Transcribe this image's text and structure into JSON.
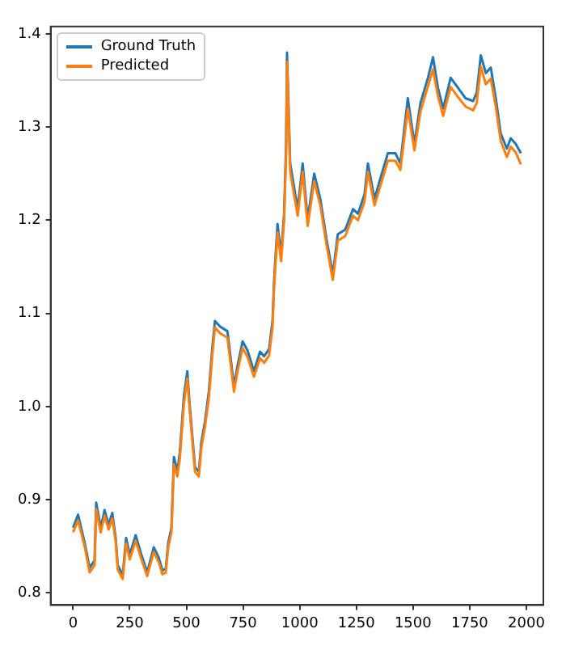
{
  "chart_data": {
    "type": "line",
    "legend": "top left",
    "grid": false,
    "marker": "none",
    "line_style": "solid",
    "xlim": [
      -99,
      2075
    ],
    "ylim": [
      0.787,
      1.408
    ],
    "xticks": [
      0,
      250,
      500,
      750,
      1000,
      1250,
      1500,
      1750,
      2000
    ],
    "yticks": [
      {
        "value": 0.8,
        "label": "0.8"
      },
      {
        "value": 0.9,
        "label": "0.9"
      },
      {
        "value": 1.0,
        "label": "1.0"
      },
      {
        "value": 1.1,
        "label": "1.1"
      },
      {
        "value": 1.2,
        "label": "1.2"
      },
      {
        "value": 1.3,
        "label": "1.3"
      },
      {
        "value": 1.4,
        "label": "1.4"
      }
    ],
    "x": [
      0,
      22,
      51,
      73,
      95,
      102,
      122,
      139,
      157,
      173,
      188,
      197,
      219,
      234,
      250,
      276,
      299,
      327,
      356,
      378,
      394,
      409,
      420,
      434,
      445,
      460,
      471,
      489,
      504,
      515,
      538,
      555,
      566,
      582,
      599,
      615,
      626,
      648,
      681,
      710,
      725,
      748,
      770,
      798,
      825,
      843,
      865,
      880,
      887,
      902,
      918,
      931,
      940,
      944,
      958,
      991,
      1013,
      1035,
      1064,
      1091,
      1118,
      1146,
      1168,
      1201,
      1235,
      1257,
      1286,
      1301,
      1330,
      1356,
      1389,
      1422,
      1444,
      1477,
      1506,
      1533,
      1566,
      1588,
      1610,
      1633,
      1666,
      1699,
      1732,
      1765,
      1781,
      1799,
      1821,
      1843,
      1865,
      1887,
      1914,
      1931,
      1953,
      1976
    ],
    "series": [
      {
        "name": "Ground Truth",
        "color": "#1f77b4",
        "values": [
          0.87,
          0.884,
          0.854,
          0.827,
          0.835,
          0.897,
          0.87,
          0.889,
          0.873,
          0.886,
          0.859,
          0.83,
          0.819,
          0.859,
          0.841,
          0.862,
          0.843,
          0.822,
          0.849,
          0.838,
          0.824,
          0.826,
          0.854,
          0.87,
          0.946,
          0.93,
          0.951,
          1.011,
          1.038,
          1.0,
          0.935,
          0.93,
          0.962,
          0.984,
          1.016,
          1.065,
          1.092,
          1.086,
          1.081,
          1.022,
          1.043,
          1.07,
          1.06,
          1.038,
          1.059,
          1.054,
          1.062,
          1.092,
          1.136,
          1.196,
          1.163,
          1.207,
          1.282,
          1.38,
          1.261,
          1.212,
          1.261,
          1.201,
          1.25,
          1.223,
          1.18,
          1.142,
          1.185,
          1.19,
          1.212,
          1.207,
          1.228,
          1.261,
          1.223,
          1.245,
          1.272,
          1.272,
          1.261,
          1.331,
          1.282,
          1.326,
          1.353,
          1.375,
          1.342,
          1.32,
          1.353,
          1.342,
          1.331,
          1.328,
          1.337,
          1.377,
          1.358,
          1.364,
          1.331,
          1.293,
          1.277,
          1.288,
          1.282,
          1.272
        ]
      },
      {
        "name": "Predicted",
        "color": "#ff7f0e",
        "values": [
          0.865,
          0.878,
          0.85,
          0.822,
          0.83,
          0.89,
          0.865,
          0.883,
          0.868,
          0.88,
          0.855,
          0.825,
          0.815,
          0.853,
          0.836,
          0.856,
          0.838,
          0.818,
          0.844,
          0.833,
          0.82,
          0.822,
          0.849,
          0.865,
          0.938,
          0.925,
          0.944,
          1.003,
          1.03,
          0.995,
          0.93,
          0.925,
          0.956,
          0.978,
          1.009,
          1.057,
          1.085,
          1.079,
          1.074,
          1.016,
          1.037,
          1.063,
          1.053,
          1.032,
          1.052,
          1.047,
          1.055,
          1.085,
          1.128,
          1.187,
          1.156,
          1.199,
          1.27,
          1.37,
          1.252,
          1.205,
          1.252,
          1.194,
          1.242,
          1.216,
          1.174,
          1.136,
          1.178,
          1.183,
          1.205,
          1.2,
          1.22,
          1.252,
          1.216,
          1.237,
          1.264,
          1.264,
          1.254,
          1.32,
          1.275,
          1.317,
          1.344,
          1.362,
          1.333,
          1.312,
          1.343,
          1.332,
          1.322,
          1.318,
          1.326,
          1.365,
          1.346,
          1.352,
          1.322,
          1.285,
          1.268,
          1.279,
          1.273,
          1.26
        ]
      }
    ]
  }
}
